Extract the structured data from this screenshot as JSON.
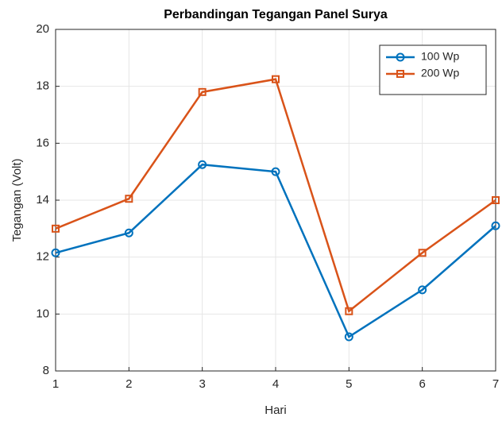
{
  "chart_data": {
    "type": "line",
    "title": "Perbandingan Tegangan Panel Surya",
    "xlabel": "Hari",
    "ylabel": "Tegangan (Volt)",
    "x": [
      1,
      2,
      3,
      4,
      5,
      6,
      7
    ],
    "xlim": [
      1,
      7
    ],
    "xticks": [
      1,
      2,
      3,
      4,
      5,
      6,
      7
    ],
    "ylim": [
      8,
      20
    ],
    "yticks": [
      8,
      10,
      12,
      14,
      16,
      18,
      20
    ],
    "grid": true,
    "legend": "northeast",
    "series": [
      {
        "name": "100 Wp",
        "color": "#0072BD",
        "marker": "circle",
        "values": [
          12.15,
          12.85,
          15.25,
          15.0,
          9.2,
          10.85,
          13.1
        ]
      },
      {
        "name": "200 Wp",
        "color": "#D95319",
        "marker": "square",
        "values": [
          13.0,
          14.05,
          17.8,
          18.25,
          10.1,
          12.15,
          14.0
        ]
      }
    ]
  }
}
